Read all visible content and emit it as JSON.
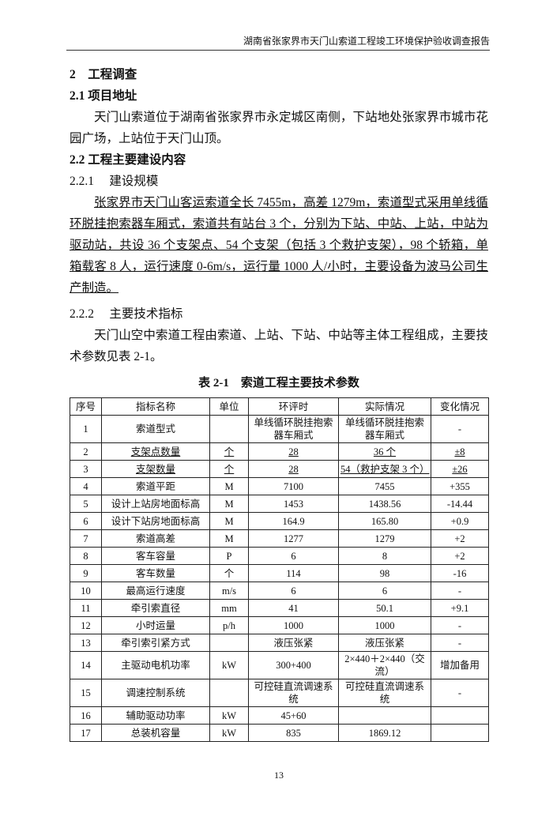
{
  "header": "湖南省张家界市天门山索道工程竣工环境保护验收调查报告",
  "sec2": "2　工程调查",
  "sec21": "2.1 项目地址",
  "p21": "天门山索道位于湖南省张家界市永定城区南侧，下站地处张家界市城市花园广场，上站位于天门山顶。",
  "sec22": "2.2 工程主要建设内容",
  "sec221": "2.2.1　 建设规模",
  "p221": "张家界市天门山客运索道全长 7455m，高差 1279m，索道型式采用单线循环脱挂抱索器车厢式，索道共有站台 3 个，分别为下站、中站、上站，中站为驱动站，共设 36 个支架点、54 个支架（包括 3 个救护支架），98 个轿箱，单箱载客 8 人，运行速度 0-6m/s，运行量 1000 人/小时，主要设备为波马公司生产制造。",
  "sec222": "2.2.2　 主要技术指标",
  "p222": "天门山空中索道工程由索道、上站、下站、中站等主体工程组成，主要技术参数见表 2-1。",
  "table": {
    "caption": "表 2-1　索道工程主要技术参数",
    "headers": [
      "序号",
      "指标名称",
      "单位",
      "环评时",
      "实际情况",
      "变化情况"
    ],
    "rows": [
      [
        "1",
        "索道型式",
        "",
        "单线循环脱挂抱索器车厢式",
        "单线循环脱挂抱索器车厢式",
        "-"
      ],
      [
        "2",
        "支架点数量",
        "个",
        "28",
        "36 个",
        "±8"
      ],
      [
        "3",
        "支架数量",
        "个",
        "28",
        "54（救护支架 3 个）",
        "±26"
      ],
      [
        "4",
        "索道平距",
        "M",
        "7100",
        "7455",
        "+355"
      ],
      [
        "5",
        "设计上站房地面标高",
        "M",
        "1453",
        "1438.56",
        "-14.44"
      ],
      [
        "6",
        "设计下站房地面标高",
        "M",
        "164.9",
        "165.80",
        "+0.9"
      ],
      [
        "7",
        "索道高差",
        "M",
        "1277",
        "1279",
        "+2"
      ],
      [
        "8",
        "客车容量",
        "P",
        "6",
        "8",
        "+2"
      ],
      [
        "9",
        "客车数量",
        "个",
        "114",
        "98",
        "-16"
      ],
      [
        "10",
        "最高运行速度",
        "m/s",
        "6",
        "6",
        "-"
      ],
      [
        "11",
        "牵引索直径",
        "mm",
        "41",
        "50.1",
        "+9.1"
      ],
      [
        "12",
        "小时运量",
        "p/h",
        "1000",
        "1000",
        "-"
      ],
      [
        "13",
        "牵引索引紧方式",
        "",
        "液压张紧",
        "液压张紧",
        "-"
      ],
      [
        "14",
        "主驱动电机功率",
        "kW",
        "300+400",
        "2×440＋2×440（交流）",
        "增加备用"
      ],
      [
        "15",
        "调速控制系统",
        "",
        "可控硅直流调速系统",
        "可控硅直流调速系统",
        "-"
      ],
      [
        "16",
        "辅助驱动功率",
        "kW",
        "45+60",
        "",
        ""
      ],
      [
        "17",
        "总装机容量",
        "kW",
        "835",
        "1869.12",
        ""
      ]
    ]
  },
  "page_number": "13"
}
